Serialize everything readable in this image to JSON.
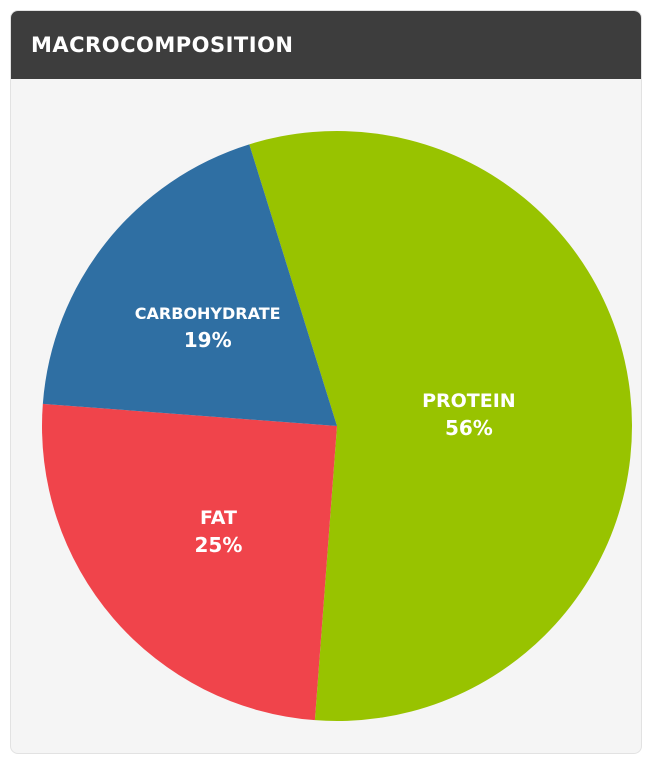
{
  "header": {
    "title": "MACROCOMPOSITION"
  },
  "chart_data": {
    "type": "pie",
    "start_angle_deg": -17.3,
    "direction": "clockwise",
    "slices": [
      {
        "label": "PROTEIN",
        "value": 56,
        "display": "56%",
        "color": "#98c300"
      },
      {
        "label": "FAT",
        "value": 25,
        "display": "25%",
        "color": "#f0444b"
      },
      {
        "label": "CARBOHYDRATE",
        "value": 19,
        "display": "19%",
        "color": "#2f6fa3"
      }
    ]
  }
}
